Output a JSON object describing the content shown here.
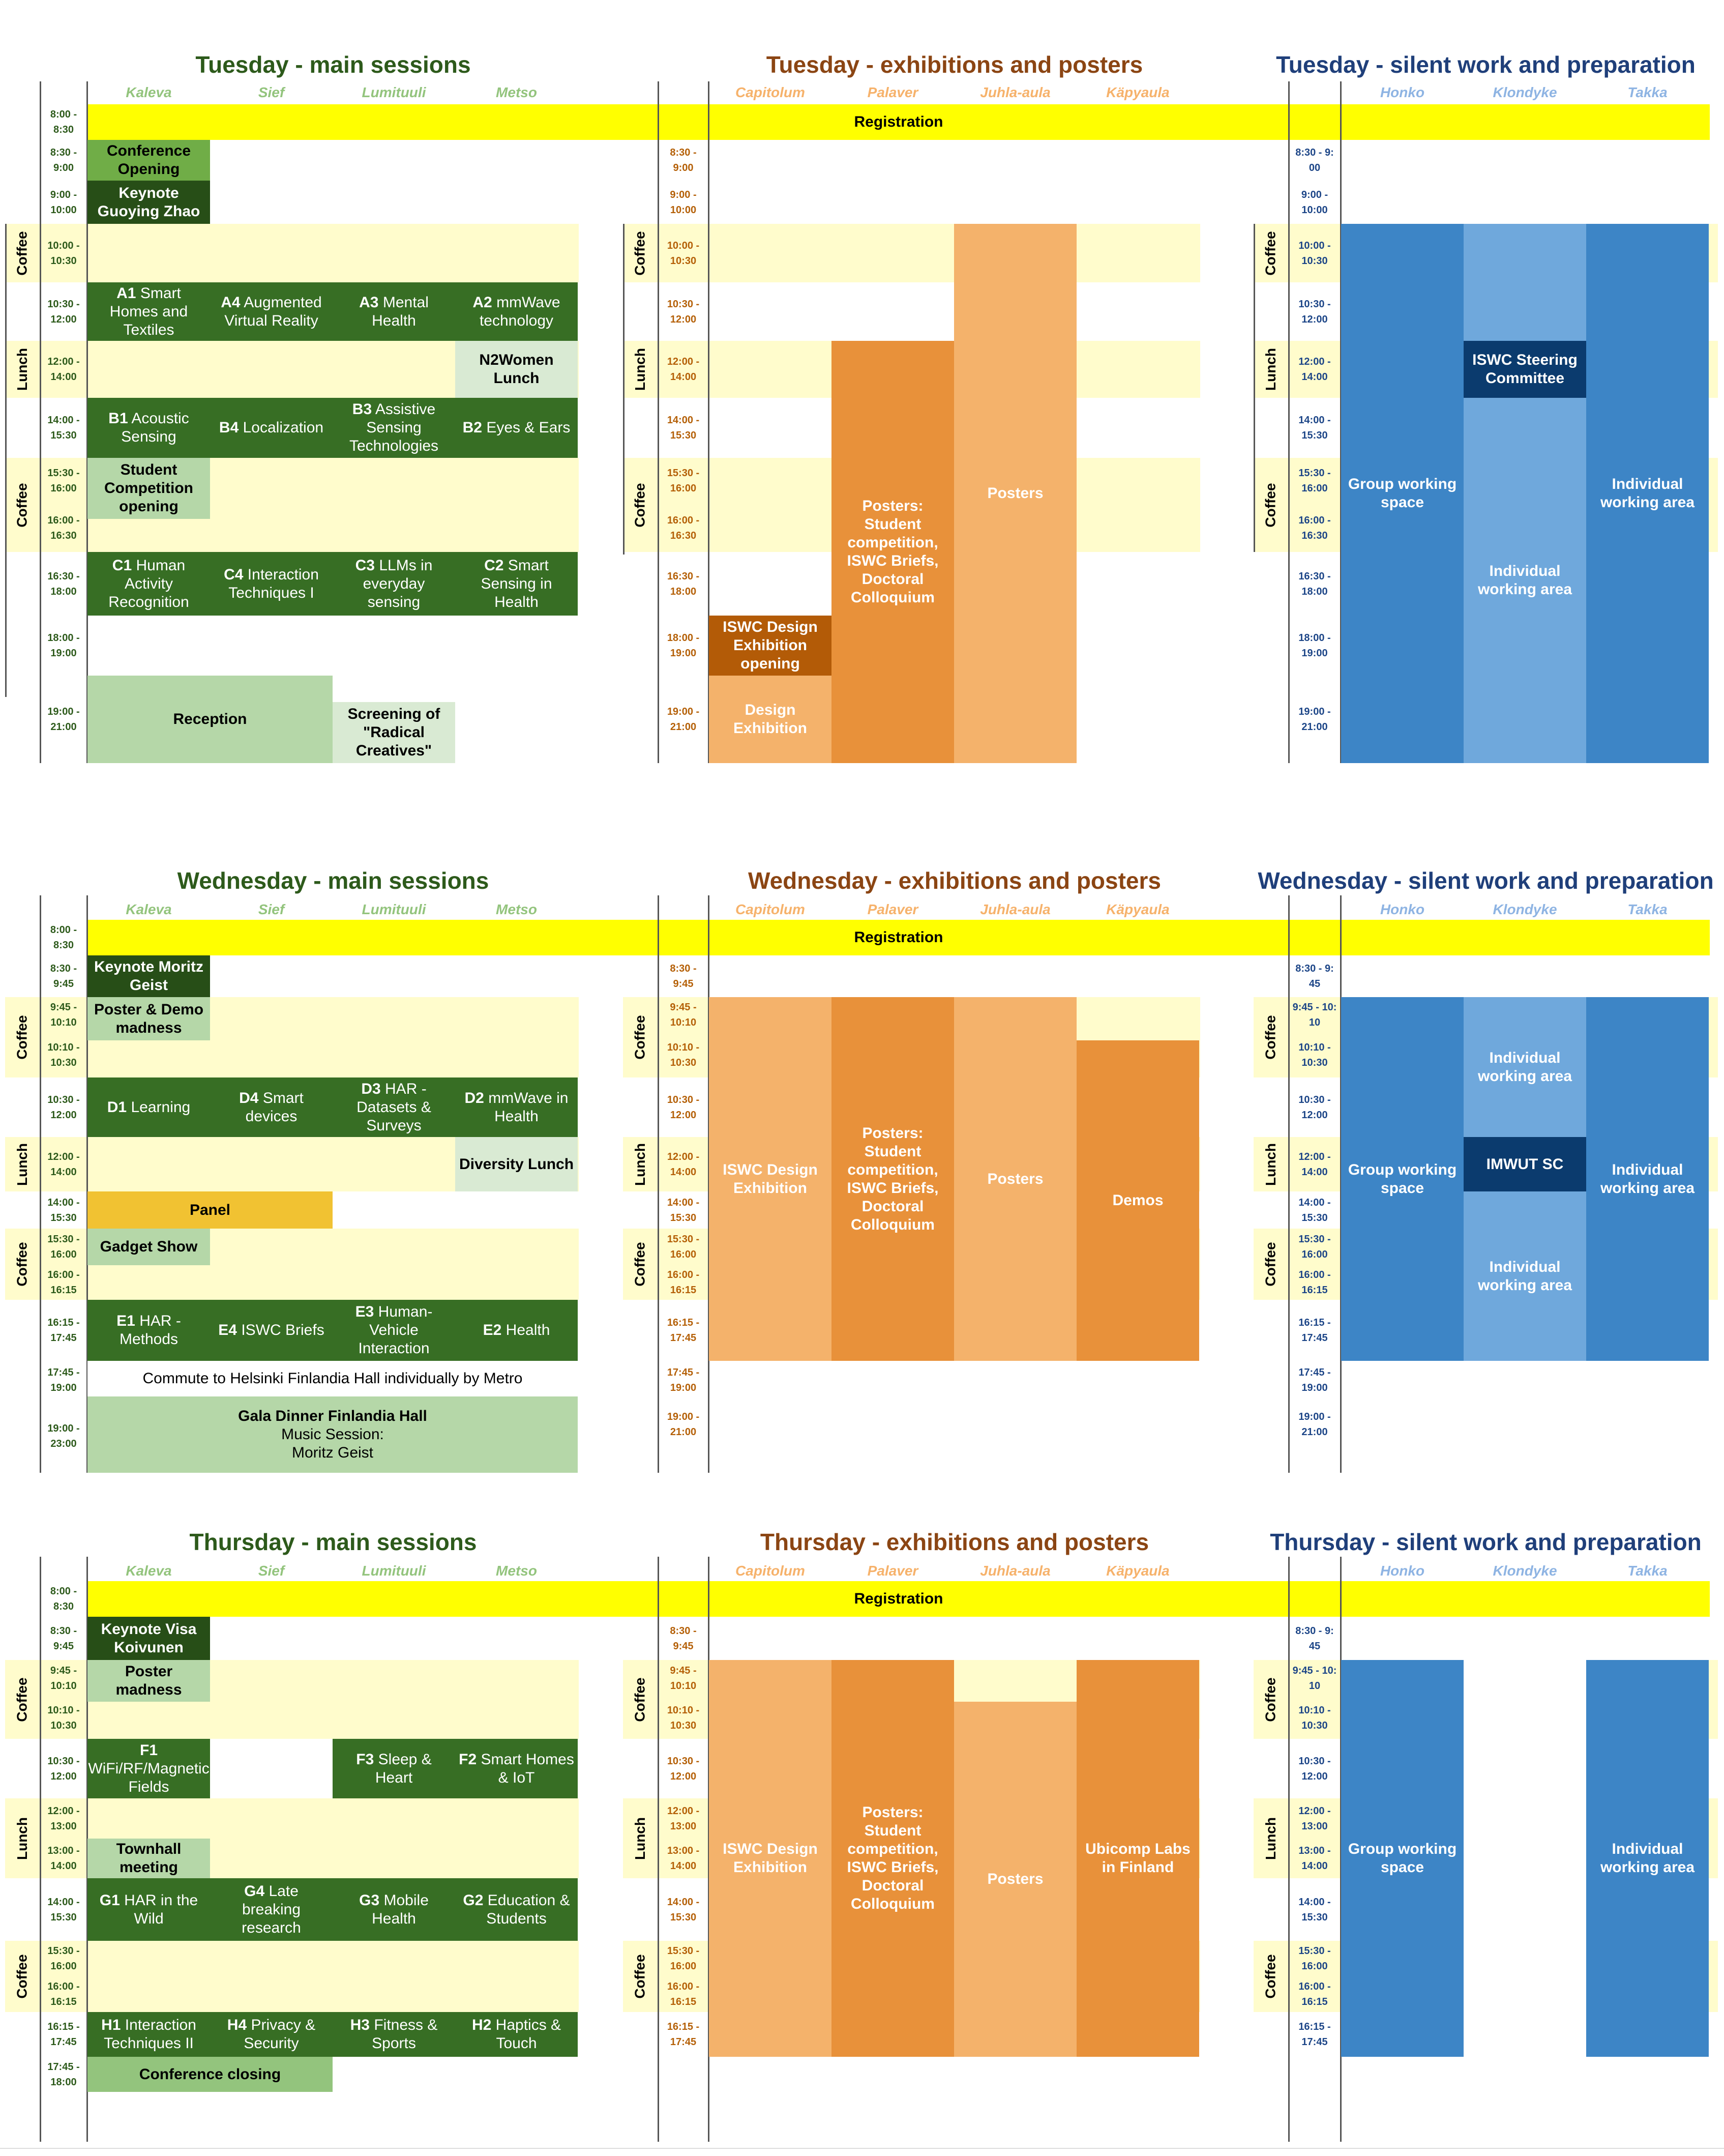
{
  "days": [
    {
      "name": "Tuesday",
      "titles": {
        "main": "Tuesday - main sessions",
        "exh": "Tuesday - exhibitions and posters",
        "quiet": "Tuesday - silent work and preparation"
      }
    },
    {
      "name": "Wednesday",
      "titles": {
        "main": "Wednesday - main sessions",
        "exh": "Wednesday - exhibitions and posters",
        "quiet": "Wednesday - silent work and preparation"
      }
    },
    {
      "name": "Thursday",
      "titles": {
        "main": "Thursday - main sessions",
        "exh": "Thursday - exhibitions and posters",
        "quiet": "Thursday - silent work and preparation"
      }
    }
  ],
  "rooms": {
    "main": [
      "Kaleva",
      "Sief",
      "Lumituuli",
      "Metso"
    ],
    "exh": [
      "Capitolum",
      "Palaver",
      "Juhla-aula",
      "Käpyaula"
    ],
    "quiet": [
      "Honko",
      "Klondyke",
      "Takka"
    ]
  },
  "break_labels": {
    "coffee": "Coffee",
    "lunch": "Lunch"
  },
  "registration": "Registration",
  "colors": {
    "green_title": "#2d5a1b",
    "orange_title": "#8b4513",
    "blue_title": "#1f3f7a",
    "yellow_registration": "#ffff00",
    "cream_break": "#fffccc",
    "dark_green": "#376e24",
    "darker_green": "#274e17",
    "mid_green": "#70ad47",
    "light_green": "#b5d7a8",
    "pale_green": "#d9ead3",
    "orange_light": "#f4b26b",
    "orange_mid": "#e8913a",
    "orange_dark": "#b35b07",
    "blue_mid": "#3d85c6",
    "blue_light": "#6fa8dc",
    "blue_dark": "#0b3b6e",
    "panel_yellow": "#f1c232"
  },
  "tuesday": {
    "times_main": [
      "8:00 - 8:30",
      "8:30 - 9:00",
      "9:00 - 10:00",
      "10:00 - 10:30",
      "10:30 - 12:00",
      "12:00 - 14:00",
      "14:00 - 15:30",
      "15:30 - 16:00",
      "16:00 - 16:30",
      "16:30 - 18:00",
      "18:00 - 19:00",
      "19:00 - 21:00"
    ],
    "times_exh": [
      "8:30 - 9:00",
      "9:00 - 10:00",
      "10:00 - 10:30",
      "10:30 - 12:00",
      "12:00 - 14:00",
      "14:00 - 15:30",
      "15:30 - 16:00",
      "16:00 - 16:30",
      "16:30 - 18:00",
      "18:00 - 19:00",
      "19:00 - 21:00"
    ],
    "times_quiet": [
      "8:30 - 9:\n00",
      "9:00 - 10:00",
      "10:00 - 10:30",
      "10:30 - 12:00",
      "12:00 - 14:00",
      "14:00 - 15:30",
      "15:30 - 16:00",
      "16:00 - 16:30",
      "16:30 - 18:00",
      "18:00 - 19:00",
      "19:00 - 21:00"
    ],
    "blocks": {
      "opening": "Conference Opening",
      "keynote": "Keynote Guoying Zhao",
      "a1_code": "A1",
      "a1": "Smart Homes and Textiles",
      "a4_code": "A4",
      "a4": "Augmented Virtual Reality",
      "a3_code": "A3",
      "a3": "Mental Health",
      "a2_code": "A2",
      "a2": "mmWave technology",
      "n2women": "N2Women Lunch",
      "b1_code": "B1",
      "b1": "Acoustic Sensing",
      "b4_code": "B4",
      "b4": "Localization",
      "b3_code": "B3",
      "b3": "Assistive Sensing Technologies",
      "b2_code": "B2",
      "b2": "Eyes & Ears",
      "student": "Student Competition opening",
      "c1_code": "C1",
      "c1": "Human Activity Recognition",
      "c4_code": "C4",
      "c4": "Interaction Techniques I",
      "c3_code": "C3",
      "c3": "LLMs in everyday sensing",
      "c2_code": "C2",
      "c2": "Smart Sensing in Health",
      "reception": "Reception",
      "screening": "Screening of \"Radical Creatives\"",
      "design_opening": "ISWC Design Exhibition opening",
      "design_exh": "Design Exhibition",
      "posters_big": "Posters: Student competition, ISWC Briefs, Doctoral Colloquium",
      "posters": "Posters",
      "steering": "ISWC Steering Committee",
      "group": "Group working space",
      "individual": "Individual working area"
    }
  },
  "wednesday": {
    "times_main": [
      "8:00 - 8:30",
      "8:30 - 9:45",
      "9:45 - 10:10",
      "10:10 - 10:30",
      "10:30 - 12:00",
      "12:00 - 14:00",
      "14:00 - 15:30",
      "15:30 - 16:00",
      "16:00 - 16:15",
      "16:15 - 17:45",
      "17:45 - 19:00",
      "19:00 - 23:00"
    ],
    "times_exh": [
      "8:30 - 9:45",
      "9:45 - 10:10",
      "10:10 - 10:30",
      "10:30 - 12:00",
      "12:00 - 14:00",
      "14:00 - 15:30",
      "15:30 - 16:00",
      "16:00 - 16:15",
      "16:15 - 17:45",
      "17:45 - 19:00",
      "19:00 - 21:00"
    ],
    "times_quiet": [
      "8:30 - 9:\n45",
      "9:45 - 10:\n10",
      "10:10 - 10:30",
      "10:30 - 12:00",
      "12:00 - 14:00",
      "14:00 - 15:30",
      "15:30 - 16:00",
      "16:00 - 16:15",
      "16:15 - 17:45",
      "17:45 - 19:00",
      "19:00 - 21:00"
    ],
    "blocks": {
      "keynote": "Keynote Moritz Geist",
      "madness": "Poster & Demo madness",
      "d1_code": "D1",
      "d1": "Learning",
      "d4_code": "D4",
      "d4": "Smart devices",
      "d3_code": "D3",
      "d3": "HAR - Datasets & Surveys",
      "d2_code": "D2",
      "d2": "mmWave in Health",
      "diversity": "Diversity Lunch",
      "panel": "Panel",
      "gadget": "Gadget Show",
      "e1_code": "E1",
      "e1": "HAR - Methods",
      "e4_code": "E4",
      "e4": "ISWC Briefs",
      "e3_code": "E3",
      "e3": "Human-Vehicle Interaction",
      "e2_code": "E2",
      "e2": "Health",
      "commute": "Commute to Helsinki Finlandia Hall individually by Metro",
      "gala_title": "Gala Dinner Finlandia Hall",
      "gala_sub": "Music Session:\nMoritz Geist",
      "design_exh": "ISWC Design Exhibition",
      "posters_big": "Posters: Student competition, ISWC Briefs, Doctoral Colloquium",
      "posters": "Posters",
      "demos": "Demos",
      "group": "Group working space",
      "individual": "Individual working area",
      "imwut": "IMWUT SC"
    }
  },
  "thursday": {
    "times_main": [
      "8:00 - 8:30",
      "8:30 - 9:45",
      "9:45 - 10:10",
      "10:10 - 10:30",
      "10:30 - 12:00",
      "12:00 - 13:00",
      "13:00 - 14:00",
      "14:00 - 15:30",
      "15:30 - 16:00",
      "16:00 - 16:15",
      "16:15 - 17:45",
      "17:45 - 18:00"
    ],
    "times_exh": [
      "8:30 - 9:45",
      "9:45 - 10:10",
      "10:10 - 10:30",
      "10:30 - 12:00",
      "12:00 - 13:00",
      "13:00 - 14:00",
      "14:00 - 15:30",
      "15:30 - 16:00",
      "16:00 - 16:15",
      "16:15 - 17:45"
    ],
    "times_quiet": [
      "8:30 - 9:\n45",
      "9:45 - 10:\n10",
      "10:10 - 10:30",
      "10:30 - 12:00",
      "12:00 - 13:00",
      "13:00 - 14:00",
      "14:00 - 15:30",
      "15:30 - 16:00",
      "16:00 - 16:15",
      "16:15 - 17:45"
    ],
    "blocks": {
      "keynote": "Keynote Visa Koivunen",
      "madness": "Poster madness",
      "f1_code": "F1",
      "f1": "WiFi/RF/Magnetic Fields",
      "f3_code": "F3",
      "f3": "Sleep & Heart",
      "f2_code": "F2",
      "f2": "Smart Homes & IoT",
      "townhall": "Townhall meeting",
      "g1_code": "G1",
      "g1": "HAR in the Wild",
      "g4_code": "G4",
      "g4": "Late breaking research",
      "g3_code": "G3",
      "g3": "Mobile Health",
      "g2_code": "G2",
      "g2": "Education & Students",
      "h1_code": "H1",
      "h1": "Interaction Techniques II",
      "h4_code": "H4",
      "h4": "Privacy & Security",
      "h3_code": "H3",
      "h3": "Fitness & Sports",
      "h2_code": "H2",
      "h2": "Haptics & Touch",
      "closing": "Conference closing",
      "design_exh": "ISWC Design Exhibition",
      "posters_big": "Posters: Student competition, ISWC Briefs, Doctoral Colloquium",
      "posters": "Posters",
      "labs": "Ubicomp Labs in Finland",
      "group": "Group working space",
      "individual": "Individual working area"
    }
  }
}
